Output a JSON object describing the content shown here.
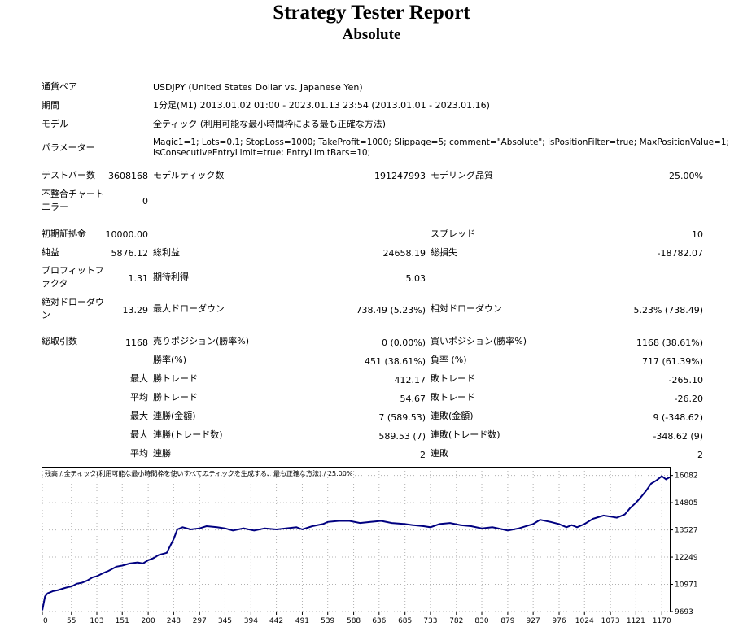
{
  "report": {
    "title": "Strategy Tester Report",
    "subtitle": "Absolute"
  },
  "settings": {
    "symbol_label": "通貨ペア",
    "symbol_value": "USDJPY (United States Dollar vs. Japanese Yen)",
    "period_label": "期間",
    "period_value": "1分足(M1) 2013.01.02 01:00 - 2023.01.13 23:54 (2013.01.01 - 2023.01.16)",
    "model_label": "モデル",
    "model_value": "全ティック (利用可能な最小時間枠による最も正確な方法)",
    "params_label": "パラメーター",
    "params_line1": "Magic1=1; Lots=0.1; StopLoss=1000; TakeProfit=1000; Slippage=5; comment=\"Absolute\"; isPositionFilter=true; MaxPositionValue=1;",
    "params_line2": "isConsecutiveEntryLimit=true; EntryLimitBars=10;"
  },
  "stats": {
    "bars_label": "テストバー数",
    "bars_value": "3608168",
    "ticks_label": "モデルティック数",
    "ticks_value": "191247993",
    "quality_label": "モデリング品質",
    "quality_value": "25.00%",
    "mismatch_label_1": "不整合チャート",
    "mismatch_label_2": "エラー",
    "mismatch_value": "0",
    "deposit_label": "初期証拠金",
    "deposit_value": "10000.00",
    "spread_label": "スプレッド",
    "spread_value": "10",
    "net_label": "純益",
    "net_value": "5876.12",
    "gross_profit_label": "総利益",
    "gross_profit_value": "24658.19",
    "gross_loss_label": "総損失",
    "gross_loss_value": "-18782.07",
    "pf_label_1": "プロフィットフ",
    "pf_label_2": "ァクタ",
    "pf_value": "1.31",
    "expected_label": "期待利得",
    "expected_value": "5.03",
    "abs_dd_label_1": "絶対ドローダウ",
    "abs_dd_label_2": "ン",
    "abs_dd_value": "13.29",
    "max_dd_label": "最大ドローダウン",
    "max_dd_value": "738.49 (5.23%)",
    "rel_dd_label": "相対ドローダウン",
    "rel_dd_value": "5.23% (738.49)",
    "trades_label": "総取引数",
    "trades_value": "1168",
    "short_label": "売りポジション(勝率%)",
    "short_value": "0 (0.00%)",
    "long_label": "買いポジション(勝率%)",
    "long_value": "1168 (38.61%)",
    "win_label": "勝率(%)",
    "win_value": "451 (38.61%)",
    "loss_label": "負率 (%)",
    "loss_value": "717 (61.39%)",
    "largest_label": "最大",
    "largest_win_label": "勝トレード",
    "largest_win_value": "412.17",
    "largest_loss_label": "敗トレード",
    "largest_loss_value": "-265.10",
    "average_label": "平均",
    "avg_win_label": "勝トレード",
    "avg_win_value": "54.67",
    "avg_loss_label": "敗トレード",
    "avg_loss_value": "-26.20",
    "max_consec_label": "最大",
    "max_consec_win_label": "連勝(金額)",
    "max_consec_win_value": "7 (589.53)",
    "max_consec_loss_label": "連敗(金額)",
    "max_consec_loss_value": "9 (-348.62)",
    "max_consec2_label": "最大",
    "max_consec_profit_label": "連勝(トレード数)",
    "max_consec_profit_value": "589.53 (7)",
    "max_consec_lossn_label": "連敗(トレード数)",
    "max_consec_lossn_value": "-348.62 (9)",
    "avg_consec_label": "平均",
    "avg_consec_win_label": "連勝",
    "avg_consec_win_value": "2",
    "avg_consec_loss_label": "連敗",
    "avg_consec_loss_value": "2"
  },
  "chart_data": {
    "type": "line",
    "title": "残高 / 全ティック(利用可能な最小時間枠を使いすべてのティックを生成する、最も正確な方法) / 25.00%",
    "xlabel": "",
    "ylabel": "",
    "x_ticks": [
      0,
      55,
      103,
      151,
      200,
      248,
      297,
      345,
      394,
      442,
      491,
      539,
      588,
      636,
      685,
      733,
      782,
      830,
      879,
      927,
      976,
      1024,
      1073,
      1121,
      1170
    ],
    "y_ticks": [
      9693,
      10971,
      12249,
      13527,
      14805,
      16082
    ],
    "xlim": [
      0,
      1185
    ],
    "ylim": [
      9693,
      16450
    ],
    "line_color": "#000080",
    "series": [
      {
        "x": [
          0,
          5,
          10,
          20,
          30,
          40,
          50,
          55,
          65,
          75,
          85,
          95,
          103,
          115,
          125,
          140,
          151,
          165,
          180,
          190,
          200,
          210,
          220,
          235,
          240,
          248,
          255,
          265,
          280,
          297,
          310,
          330,
          345,
          360,
          380,
          400,
          420,
          442,
          460,
          480,
          491,
          510,
          530,
          539,
          560,
          580,
          600,
          620,
          640,
          660,
          685,
          700,
          720,
          733,
          750,
          770,
          790,
          810,
          830,
          850,
          870,
          879,
          900,
          920,
          927,
          940,
          960,
          976,
          990,
          1000,
          1010,
          1024,
          1040,
          1060,
          1073,
          1085,
          1100,
          1110,
          1121,
          1130,
          1140,
          1150,
          1160,
          1170,
          1178,
          1185
        ],
        "values": [
          9750,
          10400,
          10550,
          10650,
          10700,
          10780,
          10850,
          10870,
          11000,
          11050,
          11150,
          11300,
          11350,
          11500,
          11600,
          11800,
          11850,
          11950,
          12000,
          11950,
          12100,
          12200,
          12350,
          12450,
          12700,
          13100,
          13550,
          13650,
          13550,
          13600,
          13700,
          13650,
          13600,
          13500,
          13600,
          13500,
          13600,
          13550,
          13600,
          13650,
          13550,
          13700,
          13800,
          13900,
          13950,
          13950,
          13850,
          13900,
          13950,
          13850,
          13800,
          13750,
          13700,
          13650,
          13800,
          13850,
          13750,
          13700,
          13600,
          13650,
          13550,
          13500,
          13600,
          13750,
          13800,
          14000,
          13900,
          13800,
          13650,
          13750,
          13650,
          13800,
          14050,
          14200,
          14150,
          14100,
          14250,
          14550,
          14800,
          15050,
          15350,
          15700,
          15850,
          16050,
          15900,
          16000
        ]
      }
    ]
  }
}
